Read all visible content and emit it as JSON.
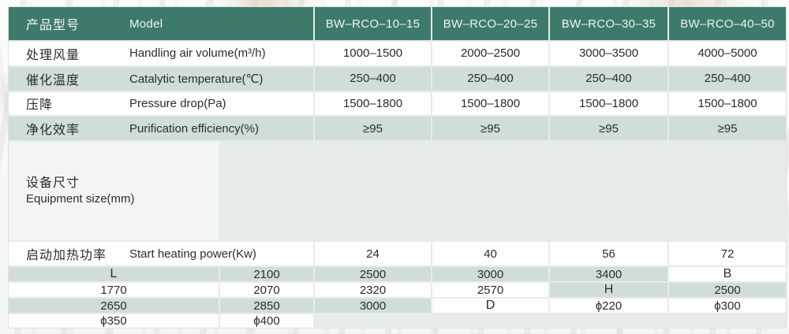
{
  "table": {
    "header": {
      "label_cn": "产品型号",
      "label_en": "Model",
      "models": [
        "BW–RCO–10–15",
        "BW–RCO–20–25",
        "BW–RCO–30–35",
        "BW–RCO–40–50"
      ]
    },
    "rows": [
      {
        "cn": "处理风量",
        "en": "Handling air volume(m³/h)",
        "values": [
          "1000–1500",
          "2000–2500",
          "3000–3500",
          "4000–5000"
        ]
      },
      {
        "cn": "催化温度",
        "en": "Catalytic temperature(℃)",
        "values": [
          "250–400",
          "250–400",
          "250–400",
          "250–400"
        ]
      },
      {
        "cn": "压降",
        "en": "Pressure drop(Pa)",
        "values": [
          "1500–1800",
          "1500–1800",
          "1500–1800",
          "1500–1800"
        ]
      },
      {
        "cn": "净化效率",
        "en": "Purification efficiency(%)",
        "values": [
          "≥95",
          "≥95",
          "≥95",
          "≥95"
        ]
      },
      {
        "cn": "启动加热功率",
        "en": "Start heating power(Kw)",
        "values": [
          "24",
          "40",
          "56",
          "72"
        ]
      }
    ],
    "size_section": {
      "label_cn": "设备尺寸",
      "label_en": "Equipment size(mm)",
      "dims": [
        {
          "label": "L",
          "values": [
            "2100",
            "2500",
            "3000",
            "3400"
          ]
        },
        {
          "label": "B",
          "values": [
            "1770",
            "2070",
            "2320",
            "2570"
          ]
        },
        {
          "label": "H",
          "values": [
            "2500",
            "2650",
            "2850",
            "3000"
          ]
        },
        {
          "label": "D",
          "values": [
            "ϕ220",
            "ϕ300",
            "ϕ350",
            "ϕ400"
          ]
        }
      ]
    }
  },
  "colors": {
    "header_bg": "#3e7a6c",
    "header_text": "#eef5f2",
    "row_green": "#cddcd6",
    "row_white": "#ffffff",
    "text": "#2d2d2d"
  }
}
